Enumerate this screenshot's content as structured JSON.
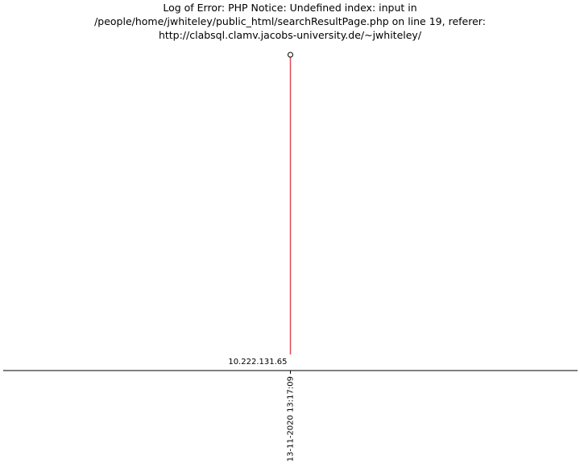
{
  "chart_data": {
    "type": "timeline",
    "title_lines": [
      "Log of Error: PHP Notice:  Undefined index: input in",
      "/people/home/jwhiteley/public_html/searchResultPage.php on line 19, referer:",
      "http://clabsql.clamv.jacobs-university.de/~jwhiteley/"
    ],
    "events": [
      {
        "label": "10.222.131.65",
        "x_label": "13-11-2020 13:17:09",
        "stem_color": "#e04a56",
        "marker": "hollow-circle"
      }
    ],
    "grid": false,
    "legend": "none"
  }
}
